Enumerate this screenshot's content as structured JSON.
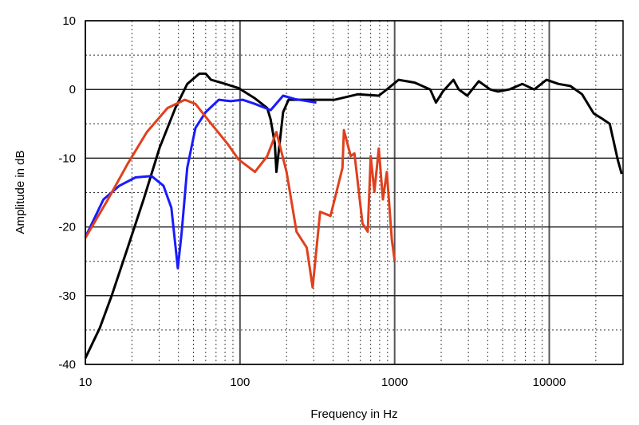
{
  "chart_data": {
    "type": "line",
    "title": "",
    "xlabel": "Frequency in Hz",
    "ylabel": "Amplitude in dB",
    "xscale": "log",
    "xlim": [
      10,
      30000
    ],
    "ylim": [
      -40,
      10
    ],
    "grid": true,
    "x_ticks": [
      10,
      100,
      1000,
      10000
    ],
    "x_tick_labels": [
      "10",
      "100",
      "1000",
      "10000"
    ],
    "y_ticks": [
      10,
      0,
      -10,
      -20,
      -30,
      -40
    ],
    "y_tick_labels": [
      "10",
      "0",
      "-10",
      "-20",
      "-30",
      "-40"
    ],
    "series": [
      {
        "name": "black",
        "color": "#000000",
        "x": [
          10,
          12.4,
          14.8,
          18.8,
          23.8,
          30.2,
          38.2,
          45.6,
          54.6,
          60,
          65,
          78,
          98,
          125,
          150,
          158,
          168,
          172,
          178,
          190,
          206,
          283,
          410,
          580,
          790,
          890,
          1060,
          1350,
          1700,
          1850,
          2050,
          2400,
          2600,
          2950,
          3500,
          4150,
          4650,
          5500,
          6700,
          8000,
          9600,
          11500,
          13700,
          16300,
          19400,
          21800,
          24600,
          27700,
          29400
        ],
        "y": [
          -39.1,
          -34.7,
          -30,
          -23,
          -16,
          -8.5,
          -2.7,
          0.8,
          2.3,
          2.3,
          1.4,
          0.9,
          0.2,
          -1.3,
          -2.7,
          -4.4,
          -7.9,
          -12,
          -9,
          -3.3,
          -1.5,
          -1.5,
          -1.5,
          -0.7,
          -0.9,
          0,
          1.4,
          1,
          0,
          -1.9,
          -0.3,
          1.4,
          0,
          -0.9,
          1.2,
          0,
          -0.3,
          0,
          0.8,
          0,
          1.4,
          0.8,
          0.5,
          -0.7,
          -3.5,
          -4.2,
          -5,
          -10.2,
          -12.3
        ]
      },
      {
        "name": "blue",
        "color": "#1a1aff",
        "x": [
          10,
          13.1,
          16.6,
          21.1,
          26.8,
          32,
          36,
          39.6,
          42,
          45.6,
          51.5,
          60,
          73,
          87,
          104,
          125,
          158,
          190,
          227,
          312
        ],
        "y": [
          -21.5,
          -16,
          -14,
          -12.8,
          -12.6,
          -14,
          -17.2,
          -26,
          -20.7,
          -11.4,
          -5.6,
          -3.3,
          -1.5,
          -1.7,
          -1.5,
          -2.1,
          -3,
          -0.9,
          -1.4,
          -1.9
        ]
      },
      {
        "name": "red",
        "color": "#e0401c",
        "x": [
          10,
          14,
          18.8,
          25,
          34,
          44,
          51.5,
          62,
          83,
          98,
          125,
          150,
          172,
          200,
          232,
          270,
          295,
          330,
          385,
          460,
          470,
          520,
          550,
          620,
          670,
          700,
          740,
          790,
          840,
          890,
          960,
          1000
        ],
        "y": [
          -21.6,
          -16,
          -10.8,
          -6.2,
          -2.7,
          -1.5,
          -2.1,
          -4.4,
          -7.9,
          -10.2,
          -12,
          -9.7,
          -6.2,
          -12,
          -20.7,
          -23,
          -28.8,
          -17.8,
          -18.4,
          -11.4,
          -5.9,
          -9.7,
          -9.3,
          -19.5,
          -20.7,
          -9.7,
          -14.9,
          -8.6,
          -16,
          -12,
          -21.9,
          -24.9
        ]
      }
    ]
  }
}
